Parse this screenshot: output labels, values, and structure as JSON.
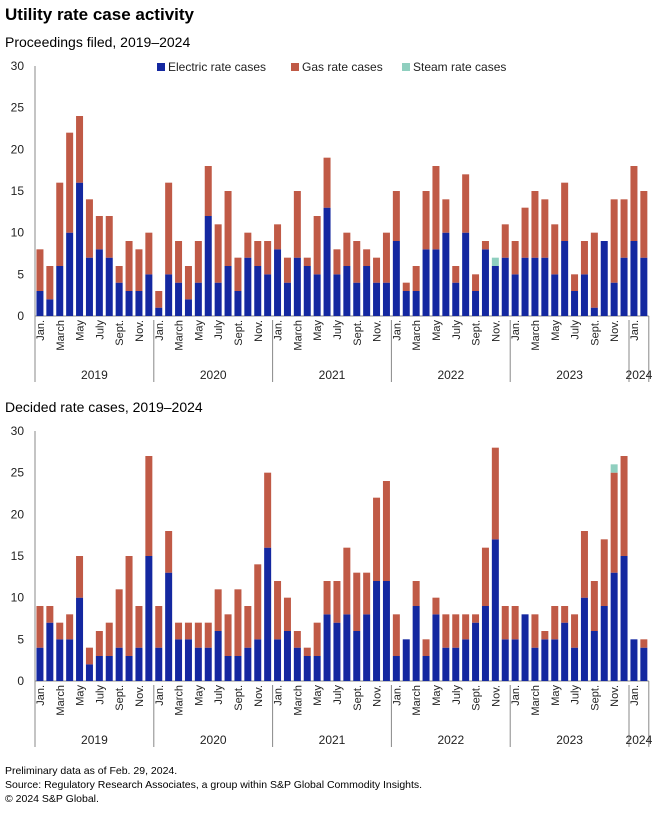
{
  "title": "Utility rate case activity",
  "colors": {
    "electric": "#1428a0",
    "gas": "#c05a46",
    "steam": "#8fcfbf",
    "axis": "#888888"
  },
  "footnotes": {
    "line1": "Preliminary data as of Feb. 29, 2024.",
    "line2": "Source: Regulatory Research Associates, a group within S&P Global Commodity Insights.",
    "line3": "© 2024 S&P Global."
  },
  "chart_data": [
    {
      "type": "bar",
      "stacked": true,
      "title": "Proceedings filed, 2019–2024",
      "ylim": [
        0,
        30
      ],
      "yticks": [
        0,
        5,
        10,
        15,
        20,
        25,
        30
      ],
      "legend": [
        "Electric rate cases",
        "Gas rate cases",
        "Steam rate cases"
      ],
      "month_tick_labels": [
        "Jan.",
        "March",
        "May",
        "July",
        "Sept.",
        "Nov."
      ],
      "year_labels": [
        "2019",
        "2020",
        "2021",
        "2022",
        "2023",
        "2024"
      ],
      "series": [
        {
          "name": "Electric rate cases",
          "values": [
            3,
            2,
            6,
            10,
            16,
            7,
            8,
            7,
            4,
            3,
            3,
            5,
            1,
            5,
            4,
            2,
            4,
            12,
            4,
            6,
            3,
            7,
            6,
            5,
            8,
            4,
            7,
            6,
            5,
            13,
            5,
            6,
            4,
            6,
            4,
            4,
            9,
            3,
            3,
            8,
            8,
            10,
            4,
            10,
            3,
            8,
            6,
            7,
            5,
            7,
            7,
            7,
            5,
            9,
            3,
            5,
            1,
            9,
            4,
            7,
            9,
            7
          ]
        },
        {
          "name": "Gas rate cases",
          "values": [
            5,
            4,
            10,
            12,
            8,
            7,
            4,
            5,
            2,
            6,
            5,
            5,
            2,
            11,
            5,
            4,
            5,
            6,
            7,
            9,
            4,
            3,
            3,
            4,
            3,
            3,
            8,
            1,
            7,
            6,
            3,
            4,
            5,
            2,
            3,
            6,
            6,
            1,
            3,
            7,
            10,
            4,
            2,
            7,
            2,
            1,
            0,
            4,
            4,
            6,
            8,
            7,
            6,
            7,
            2,
            4,
            9,
            0,
            10,
            7,
            9,
            8
          ]
        },
        {
          "name": "Steam rate cases",
          "values": [
            0,
            0,
            0,
            0,
            0,
            0,
            0,
            0,
            0,
            0,
            0,
            0,
            0,
            0,
            0,
            0,
            0,
            0,
            0,
            0,
            0,
            0,
            0,
            0,
            0,
            0,
            0,
            0,
            0,
            0,
            0,
            0,
            0,
            0,
            0,
            0,
            0,
            0,
            0,
            0,
            0,
            0,
            0,
            0,
            0,
            0,
            1,
            0,
            0,
            0,
            0,
            0,
            0,
            0,
            0,
            0,
            0,
            0,
            0,
            0,
            0,
            0
          ]
        }
      ]
    },
    {
      "type": "bar",
      "stacked": true,
      "title": "Decided rate cases, 2019–2024",
      "ylim": [
        0,
        30
      ],
      "yticks": [
        0,
        5,
        10,
        15,
        20,
        25,
        30
      ],
      "month_tick_labels": [
        "Jan.",
        "March",
        "May",
        "July",
        "Sept.",
        "Nov."
      ],
      "year_labels": [
        "2019",
        "2020",
        "2021",
        "2022",
        "2023",
        "2024"
      ],
      "series": [
        {
          "name": "Electric rate cases",
          "values": [
            4,
            7,
            5,
            5,
            10,
            2,
            3,
            3,
            4,
            3,
            4,
            15,
            4,
            13,
            5,
            5,
            4,
            4,
            6,
            3,
            3,
            4,
            5,
            16,
            5,
            6,
            4,
            3,
            3,
            8,
            7,
            8,
            6,
            8,
            12,
            12,
            3,
            5,
            9,
            3,
            8,
            4,
            4,
            5,
            7,
            9,
            17,
            5,
            5,
            8,
            4,
            5,
            5,
            7,
            4,
            10,
            6,
            9,
            13,
            15,
            5,
            4
          ]
        },
        {
          "name": "Gas rate cases",
          "values": [
            5,
            2,
            2,
            3,
            5,
            2,
            3,
            4,
            7,
            12,
            5,
            12,
            5,
            5,
            2,
            2,
            3,
            3,
            5,
            5,
            8,
            5,
            9,
            9,
            7,
            4,
            2,
            1,
            4,
            4,
            5,
            8,
            7,
            5,
            10,
            12,
            5,
            0,
            3,
            2,
            2,
            4,
            4,
            3,
            1,
            7,
            11,
            4,
            4,
            0,
            4,
            1,
            4,
            2,
            4,
            8,
            6,
            8,
            12,
            12,
            0,
            1
          ]
        },
        {
          "name": "Steam rate cases",
          "values": [
            0,
            0,
            0,
            0,
            0,
            0,
            0,
            0,
            0,
            0,
            0,
            0,
            0,
            0,
            0,
            0,
            0,
            0,
            0,
            0,
            0,
            0,
            0,
            0,
            0,
            0,
            0,
            0,
            0,
            0,
            0,
            0,
            0,
            0,
            0,
            0,
            0,
            0,
            0,
            0,
            0,
            0,
            0,
            0,
            0,
            0,
            0,
            0,
            0,
            0,
            0,
            0,
            0,
            0,
            0,
            0,
            0,
            0,
            1,
            0,
            0,
            0
          ]
        }
      ]
    }
  ]
}
